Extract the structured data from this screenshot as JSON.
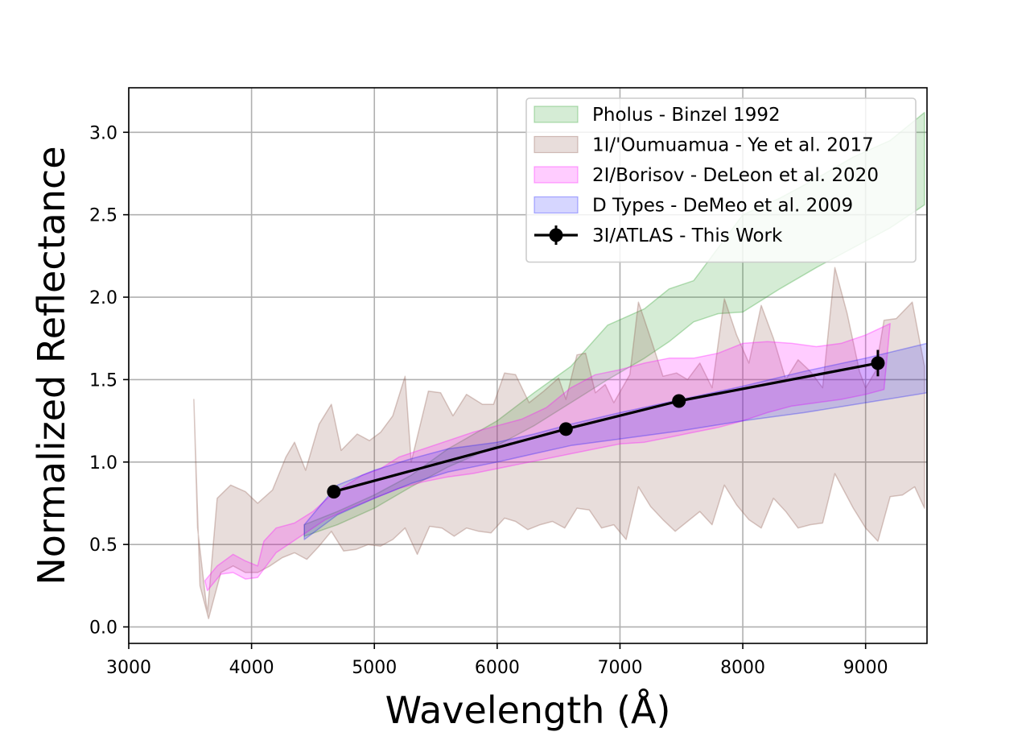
{
  "chart_data": {
    "type": "line",
    "title": "",
    "xlabel": "Wavelength (Å)",
    "ylabel": "Normalized Reflectance",
    "xlim": [
      3000,
      9500
    ],
    "ylim": [
      -0.1,
      3.27
    ],
    "xticks": [
      3000,
      4000,
      5000,
      6000,
      7000,
      8000,
      9000
    ],
    "yticks": [
      0.0,
      0.5,
      1.0,
      1.5,
      2.0,
      2.5,
      3.0
    ],
    "xtick_labels": [
      "3000",
      "4000",
      "5000",
      "6000",
      "7000",
      "8000",
      "9000"
    ],
    "ytick_labels": [
      "0.0",
      "0.5",
      "1.0",
      "1.5",
      "2.0",
      "2.5",
      "3.0"
    ],
    "grid": true,
    "legend_position": "top-right",
    "legend": [
      {
        "label": "Pholus - Binzel 1992",
        "kind": "band",
        "series": 0
      },
      {
        "label": "1I/'Oumuamua - Ye et al. 2017",
        "kind": "band",
        "series": 1
      },
      {
        "label": "2I/Borisov - DeLeon et al. 2020",
        "kind": "band",
        "series": 2
      },
      {
        "label": "D Types - DeMeo et al. 2009",
        "kind": "band",
        "series": 3
      },
      {
        "label": "3I/ATLAS - This Work",
        "kind": "line-marker",
        "series": 4
      }
    ],
    "series": [
      {
        "kind": "band",
        "color": "#2ca02c",
        "opacity": 0.2,
        "upper": [
          [
            4430,
            0.62
          ],
          [
            4700,
            0.7
          ],
          [
            5000,
            0.8
          ],
          [
            5300,
            0.92
          ],
          [
            5600,
            1.08
          ],
          [
            6000,
            1.25
          ],
          [
            6300,
            1.42
          ],
          [
            6600,
            1.58
          ],
          [
            6900,
            1.83
          ],
          [
            7200,
            1.93
          ],
          [
            7400,
            2.05
          ],
          [
            7600,
            2.1
          ],
          [
            7800,
            2.3
          ],
          [
            8000,
            2.5
          ],
          [
            8300,
            2.6
          ],
          [
            8600,
            2.72
          ],
          [
            8900,
            2.85
          ],
          [
            9200,
            2.95
          ],
          [
            9480,
            3.12
          ]
        ],
        "lower": [
          [
            4430,
            0.55
          ],
          [
            4700,
            0.62
          ],
          [
            5000,
            0.72
          ],
          [
            5300,
            0.85
          ],
          [
            5600,
            0.97
          ],
          [
            6000,
            1.1
          ],
          [
            6300,
            1.22
          ],
          [
            6600,
            1.36
          ],
          [
            6900,
            1.5
          ],
          [
            7200,
            1.63
          ],
          [
            7400,
            1.73
          ],
          [
            7600,
            1.85
          ],
          [
            7800,
            1.9
          ],
          [
            8000,
            1.91
          ],
          [
            8300,
            2.05
          ],
          [
            8600,
            2.18
          ],
          [
            8900,
            2.3
          ],
          [
            9200,
            2.42
          ],
          [
            9480,
            2.56
          ]
        ]
      },
      {
        "kind": "band",
        "color": "#8c564b",
        "opacity": 0.2,
        "upper": [
          [
            3530,
            1.38
          ],
          [
            3560,
            0.6
          ],
          [
            3640,
            0.08
          ],
          [
            3720,
            0.78
          ],
          [
            3830,
            0.86
          ],
          [
            3950,
            0.82
          ],
          [
            4050,
            0.75
          ],
          [
            4170,
            0.83
          ],
          [
            4280,
            1.03
          ],
          [
            4350,
            1.12
          ],
          [
            4440,
            0.95
          ],
          [
            4550,
            1.23
          ],
          [
            4650,
            1.35
          ],
          [
            4730,
            1.07
          ],
          [
            4860,
            1.17
          ],
          [
            4960,
            1.13
          ],
          [
            5050,
            1.18
          ],
          [
            5150,
            1.28
          ],
          [
            5250,
            1.52
          ],
          [
            5300,
            1.0
          ],
          [
            5440,
            1.43
          ],
          [
            5540,
            1.42
          ],
          [
            5640,
            1.28
          ],
          [
            5750,
            1.41
          ],
          [
            5880,
            1.35
          ],
          [
            5970,
            1.35
          ],
          [
            6060,
            1.54
          ],
          [
            6150,
            1.53
          ],
          [
            6260,
            1.36
          ],
          [
            6380,
            1.43
          ],
          [
            6500,
            1.51
          ],
          [
            6560,
            1.38
          ],
          [
            6650,
            1.65
          ],
          [
            6720,
            1.66
          ],
          [
            6800,
            1.42
          ],
          [
            6880,
            1.47
          ],
          [
            6950,
            1.36
          ],
          [
            7080,
            1.53
          ],
          [
            7150,
            1.97
          ],
          [
            7250,
            1.75
          ],
          [
            7350,
            1.52
          ],
          [
            7460,
            1.54
          ],
          [
            7550,
            1.5
          ],
          [
            7650,
            1.6
          ],
          [
            7750,
            1.45
          ],
          [
            7850,
            1.99
          ],
          [
            7950,
            1.77
          ],
          [
            8050,
            1.6
          ],
          [
            8150,
            1.95
          ],
          [
            8250,
            1.75
          ],
          [
            8350,
            1.5
          ],
          [
            8450,
            1.62
          ],
          [
            8550,
            1.55
          ],
          [
            8650,
            1.45
          ],
          [
            8750,
            2.18
          ],
          [
            8850,
            1.9
          ],
          [
            8950,
            1.55
          ],
          [
            9000,
            1.45
          ],
          [
            9080,
            1.55
          ],
          [
            9150,
            1.86
          ],
          [
            9250,
            1.87
          ],
          [
            9380,
            1.97
          ],
          [
            9480,
            1.58
          ]
        ],
        "lower": [
          [
            9480,
            0.72
          ],
          [
            9400,
            0.85
          ],
          [
            9300,
            0.8
          ],
          [
            9200,
            0.79
          ],
          [
            9100,
            0.52
          ],
          [
            9000,
            0.6
          ],
          [
            8900,
            0.72
          ],
          [
            8750,
            0.93
          ],
          [
            8650,
            0.63
          ],
          [
            8550,
            0.62
          ],
          [
            8450,
            0.6
          ],
          [
            8350,
            0.7
          ],
          [
            8250,
            0.78
          ],
          [
            8150,
            0.6
          ],
          [
            8050,
            0.65
          ],
          [
            7950,
            0.74
          ],
          [
            7850,
            0.86
          ],
          [
            7750,
            0.62
          ],
          [
            7650,
            0.7
          ],
          [
            7550,
            0.64
          ],
          [
            7450,
            0.58
          ],
          [
            7350,
            0.65
          ],
          [
            7250,
            0.73
          ],
          [
            7150,
            0.85
          ],
          [
            7050,
            0.53
          ],
          [
            6950,
            0.62
          ],
          [
            6850,
            0.6
          ],
          [
            6750,
            0.71
          ],
          [
            6650,
            0.72
          ],
          [
            6550,
            0.6
          ],
          [
            6450,
            0.64
          ],
          [
            6350,
            0.62
          ],
          [
            6250,
            0.59
          ],
          [
            6150,
            0.64
          ],
          [
            6060,
            0.66
          ],
          [
            5950,
            0.57
          ],
          [
            5850,
            0.58
          ],
          [
            5750,
            0.6
          ],
          [
            5650,
            0.55
          ],
          [
            5550,
            0.6
          ],
          [
            5450,
            0.61
          ],
          [
            5350,
            0.44
          ],
          [
            5250,
            0.6
          ],
          [
            5150,
            0.53
          ],
          [
            5050,
            0.49
          ],
          [
            4950,
            0.5
          ],
          [
            4850,
            0.47
          ],
          [
            4750,
            0.46
          ],
          [
            4650,
            0.58
          ],
          [
            4550,
            0.49
          ],
          [
            4450,
            0.41
          ],
          [
            4350,
            0.45
          ],
          [
            4250,
            0.42
          ],
          [
            4150,
            0.37
          ],
          [
            4050,
            0.33
          ],
          [
            3950,
            0.33
          ],
          [
            3850,
            0.37
          ],
          [
            3750,
            0.33
          ],
          [
            3650,
            0.05
          ],
          [
            3580,
            0.25
          ],
          [
            3530,
            1.38
          ]
        ]
      },
      {
        "kind": "band",
        "color": "#ff00ff",
        "opacity": 0.2,
        "upper": [
          [
            3620,
            0.28
          ],
          [
            3720,
            0.37
          ],
          [
            3850,
            0.44
          ],
          [
            3950,
            0.4
          ],
          [
            4050,
            0.37
          ],
          [
            4100,
            0.52
          ],
          [
            4200,
            0.6
          ],
          [
            4350,
            0.63
          ],
          [
            4500,
            0.7
          ],
          [
            4620,
            0.78
          ],
          [
            4750,
            0.85
          ],
          [
            4900,
            0.92
          ],
          [
            5050,
            0.96
          ],
          [
            5200,
            1.03
          ],
          [
            5400,
            1.08
          ],
          [
            5600,
            1.13
          ],
          [
            5800,
            1.18
          ],
          [
            6000,
            1.22
          ],
          [
            6200,
            1.26
          ],
          [
            6400,
            1.33
          ],
          [
            6600,
            1.45
          ],
          [
            6800,
            1.53
          ],
          [
            7000,
            1.56
          ],
          [
            7200,
            1.6
          ],
          [
            7400,
            1.63
          ],
          [
            7600,
            1.63
          ],
          [
            7800,
            1.66
          ],
          [
            8000,
            1.72
          ],
          [
            8200,
            1.73
          ],
          [
            8400,
            1.72
          ],
          [
            8600,
            1.7
          ],
          [
            8800,
            1.72
          ],
          [
            9000,
            1.77
          ],
          [
            9200,
            1.84
          ]
        ],
        "lower": [
          [
            9150,
            1.44
          ],
          [
            9000,
            1.41
          ],
          [
            8800,
            1.38
          ],
          [
            8600,
            1.36
          ],
          [
            8400,
            1.34
          ],
          [
            8200,
            1.3
          ],
          [
            8000,
            1.25
          ],
          [
            7800,
            1.21
          ],
          [
            7600,
            1.18
          ],
          [
            7400,
            1.15
          ],
          [
            7200,
            1.12
          ],
          [
            7000,
            1.11
          ],
          [
            6800,
            1.08
          ],
          [
            6600,
            1.05
          ],
          [
            6400,
            1.02
          ],
          [
            6200,
            0.99
          ],
          [
            6000,
            0.96
          ],
          [
            5800,
            0.93
          ],
          [
            5600,
            0.91
          ],
          [
            5400,
            0.88
          ],
          [
            5200,
            0.84
          ],
          [
            5000,
            0.78
          ],
          [
            4800,
            0.72
          ],
          [
            4600,
            0.65
          ],
          [
            4400,
            0.55
          ],
          [
            4200,
            0.45
          ],
          [
            4050,
            0.3
          ],
          [
            3950,
            0.29
          ],
          [
            3850,
            0.33
          ],
          [
            3750,
            0.32
          ],
          [
            3640,
            0.22
          ]
        ]
      },
      {
        "kind": "band",
        "color": "#0000ff",
        "opacity": 0.16,
        "upper": [
          [
            4430,
            0.62
          ],
          [
            4700,
            0.86
          ],
          [
            5000,
            0.95
          ],
          [
            5300,
            1.02
          ],
          [
            5600,
            1.08
          ],
          [
            6000,
            1.12
          ],
          [
            6300,
            1.17
          ],
          [
            6600,
            1.23
          ],
          [
            7000,
            1.3
          ],
          [
            7500,
            1.38
          ],
          [
            8000,
            1.46
          ],
          [
            8500,
            1.55
          ],
          [
            9000,
            1.63
          ],
          [
            9500,
            1.72
          ]
        ],
        "lower": [
          [
            9500,
            1.42
          ],
          [
            9000,
            1.36
          ],
          [
            8500,
            1.3
          ],
          [
            8000,
            1.25
          ],
          [
            7500,
            1.19
          ],
          [
            7000,
            1.14
          ],
          [
            6600,
            1.1
          ],
          [
            6300,
            1.05
          ],
          [
            6000,
            1.0
          ],
          [
            5600,
            0.94
          ],
          [
            5300,
            0.87
          ],
          [
            5000,
            0.78
          ],
          [
            4700,
            0.68
          ],
          [
            4430,
            0.53
          ]
        ]
      },
      {
        "kind": "line-marker",
        "color": "#000000",
        "points": [
          [
            4670,
            0.82
          ],
          [
            6560,
            1.2
          ],
          [
            7480,
            1.37
          ],
          [
            9100,
            1.6
          ]
        ],
        "yerr": [
          0.0,
          0.0,
          0.0,
          0.08
        ]
      }
    ]
  }
}
